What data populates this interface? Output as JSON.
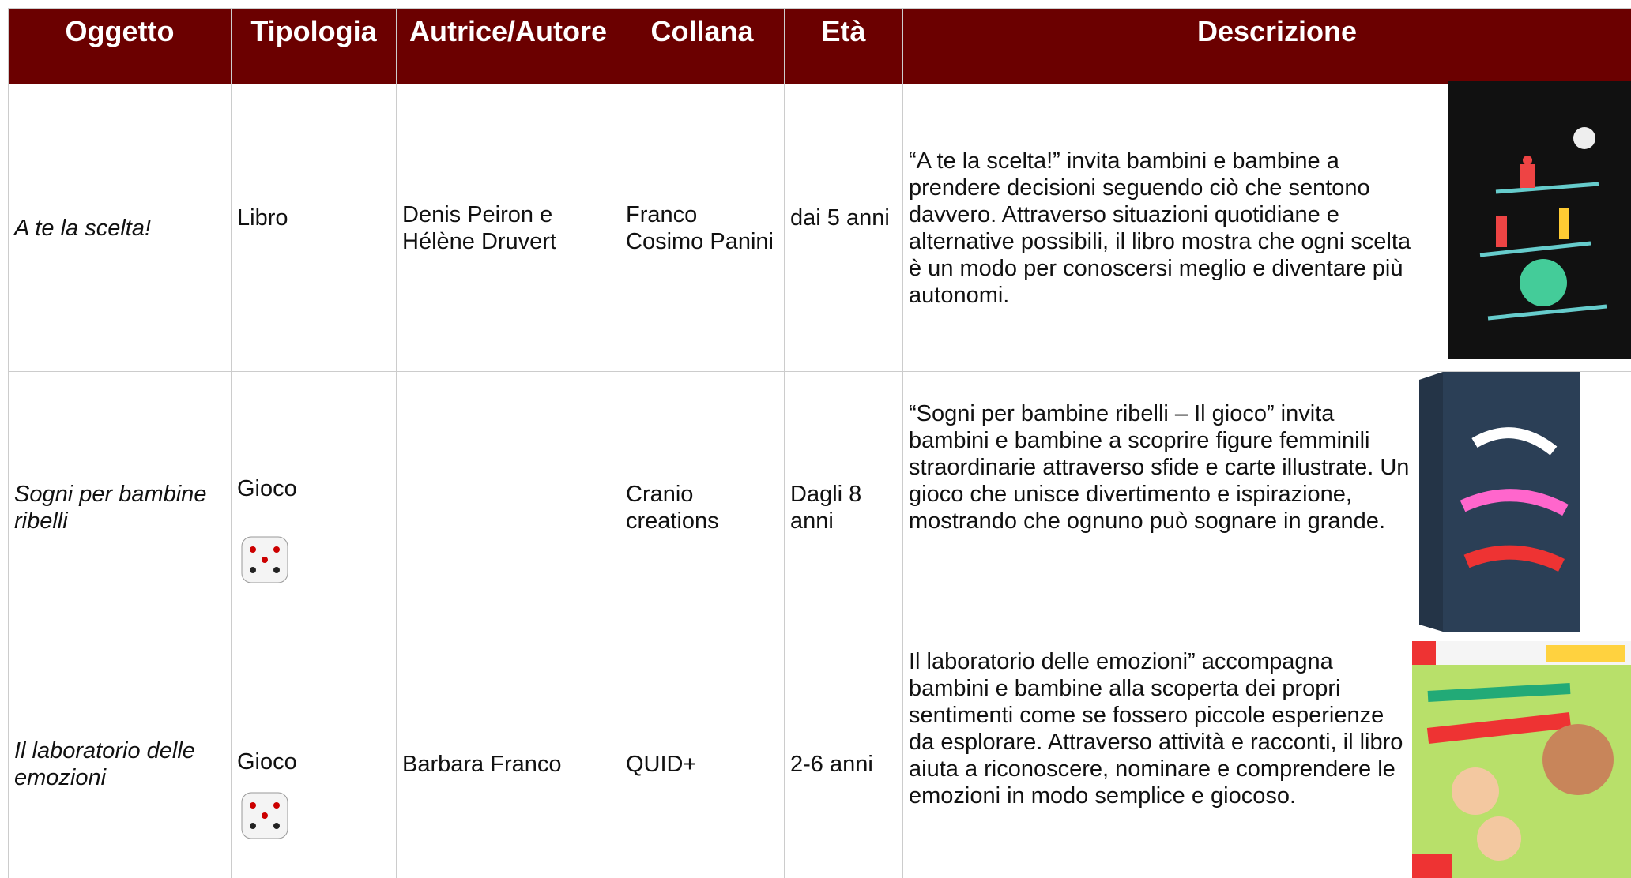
{
  "header": {
    "columns": [
      "Oggetto",
      "Tipologia",
      "Autrice/Autore",
      "Collana",
      "Età",
      "Descrizione"
    ]
  },
  "table": {
    "rows": [
      {
        "oggetto": "A te la scelta!",
        "tipologia": "Libro",
        "autore": "Denis Peiron e Hélène Druvert",
        "collana": "Franco Cosimo Panini",
        "eta": "dai 5 anni",
        "descrizione": "“A te la scelta!” invita bambini e bambine a prendere decisioni seguendo ciò che sentono davvero. Attraverso situazioni quotidiane e alternative possibili, il libro mostra che ogni scelta è un modo per conoscersi meglio e diventare più autonomi."
      },
      {
        "oggetto": "Sogni per bambine ribelli",
        "tipologia": "Gioco",
        "collana": "Cranio creations",
        "eta": "Dagli 8 anni",
        "descrizione": "“Sogni per bambine ribelli – Il gioco” invita bambini e bambine a scoprire figure femminili straordinarie attraverso sfide e carte illustrate. Un gioco che unisce divertimento e ispirazione, mostrando che ognuno può sognare in grande."
      },
      {
        "oggetto": "Il laboratorio delle emozioni",
        "tipologia": "Gioco",
        "autore": "Barbara Franco",
        "collana": "QUID+",
        "eta": "2-6 anni",
        "descrizione": "Il laboratorio delle emozioni” accompagna bambini e bambine alla scoperta dei propri sentimenti come se fossero piccole esperienze da esplorare. Attraverso attività e racconti, il libro aiuta a riconoscere, nominare e comprendere le emozioni in modo semplice e giocoso."
      }
    ]
  }
}
